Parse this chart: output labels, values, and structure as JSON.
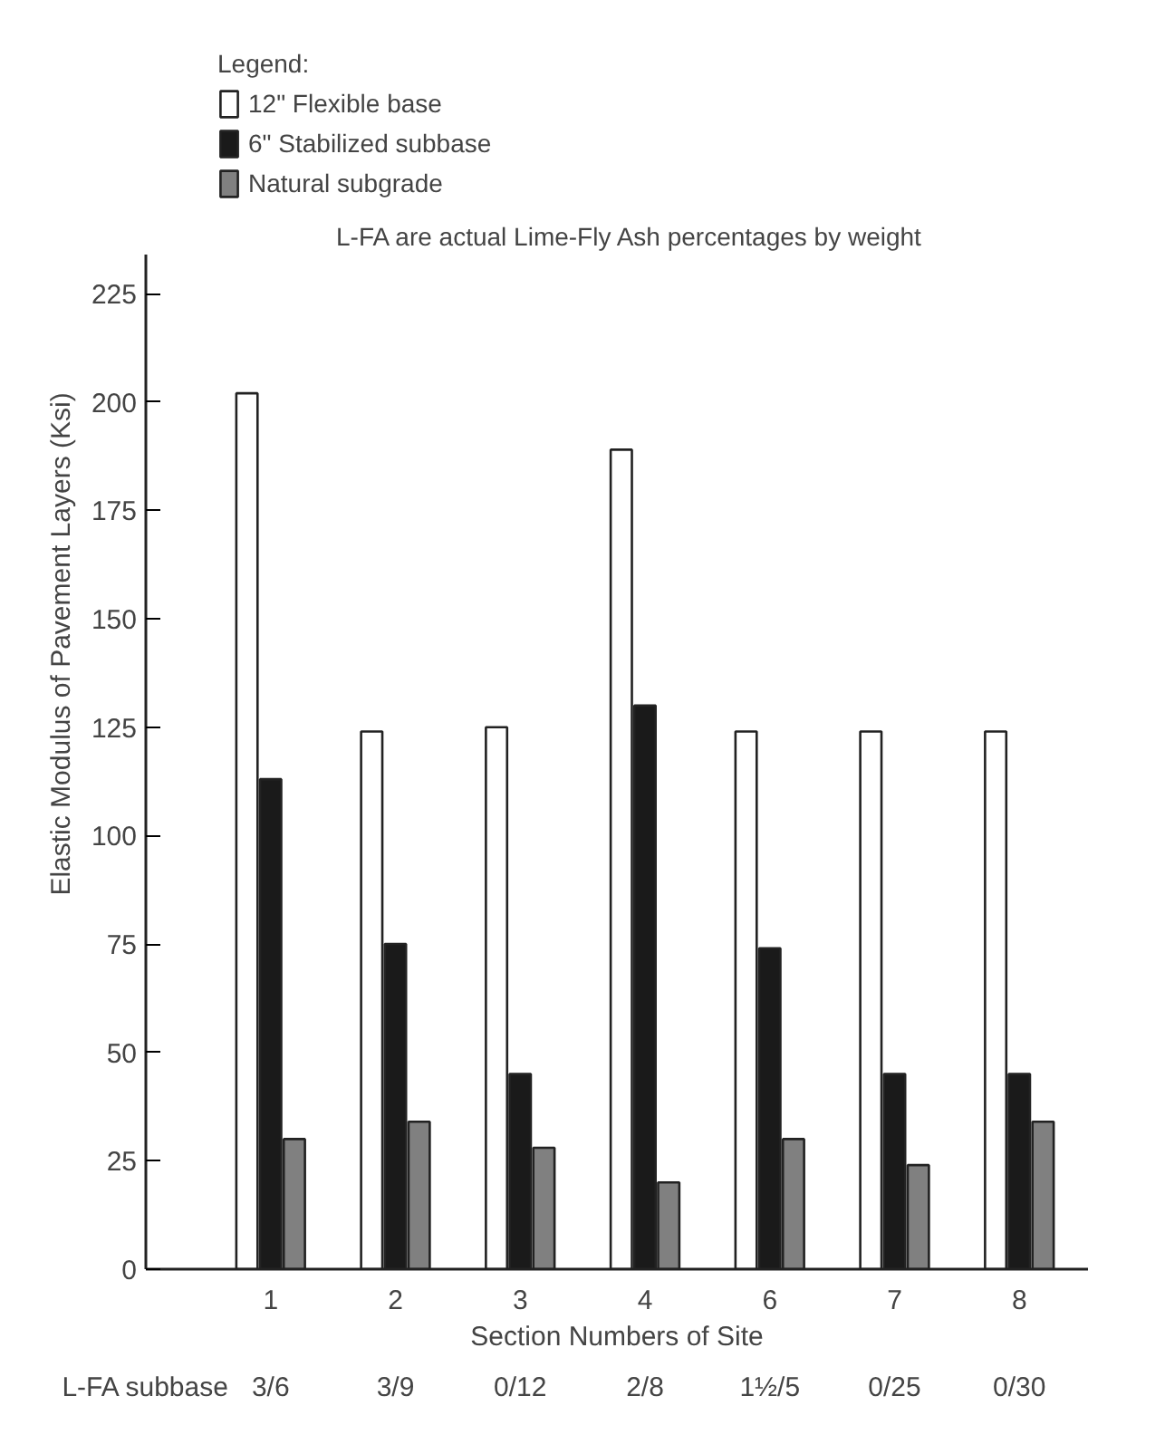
{
  "chart_data": {
    "type": "bar",
    "legend_title": "Legend:",
    "xlabel": "Section Numbers of Site",
    "ylabel": "Elastic Modulus of Pavement Layers (Ksi)",
    "categories": [
      "1",
      "2",
      "3",
      "4",
      "6",
      "7",
      "8"
    ],
    "series": [
      {
        "name": "12\" Flexible base",
        "color": "#ffffff",
        "values": [
          202,
          124,
          125,
          189,
          124,
          124,
          124
        ]
      },
      {
        "name": "6\" Stabilized subbase",
        "color": "#1a1a1a",
        "values": [
          113,
          75,
          45,
          130,
          74,
          45,
          45
        ]
      },
      {
        "name": "Natural subgrade",
        "color": "#808080",
        "values": [
          30,
          34,
          28,
          20,
          30,
          24,
          34
        ]
      }
    ],
    "ylim": [
      0,
      234
    ],
    "yticks": [
      0,
      25,
      50,
      75,
      100,
      125,
      150,
      175,
      200,
      225
    ],
    "legend": "top",
    "grid": false,
    "annotations": [
      "L-FA are actual Lime-Fly Ash percentages by weight",
      "L-FA subbase",
      "3/6",
      "3/9",
      "0/12",
      "2/8",
      "1½/5",
      "0/25",
      "0/30"
    ]
  }
}
